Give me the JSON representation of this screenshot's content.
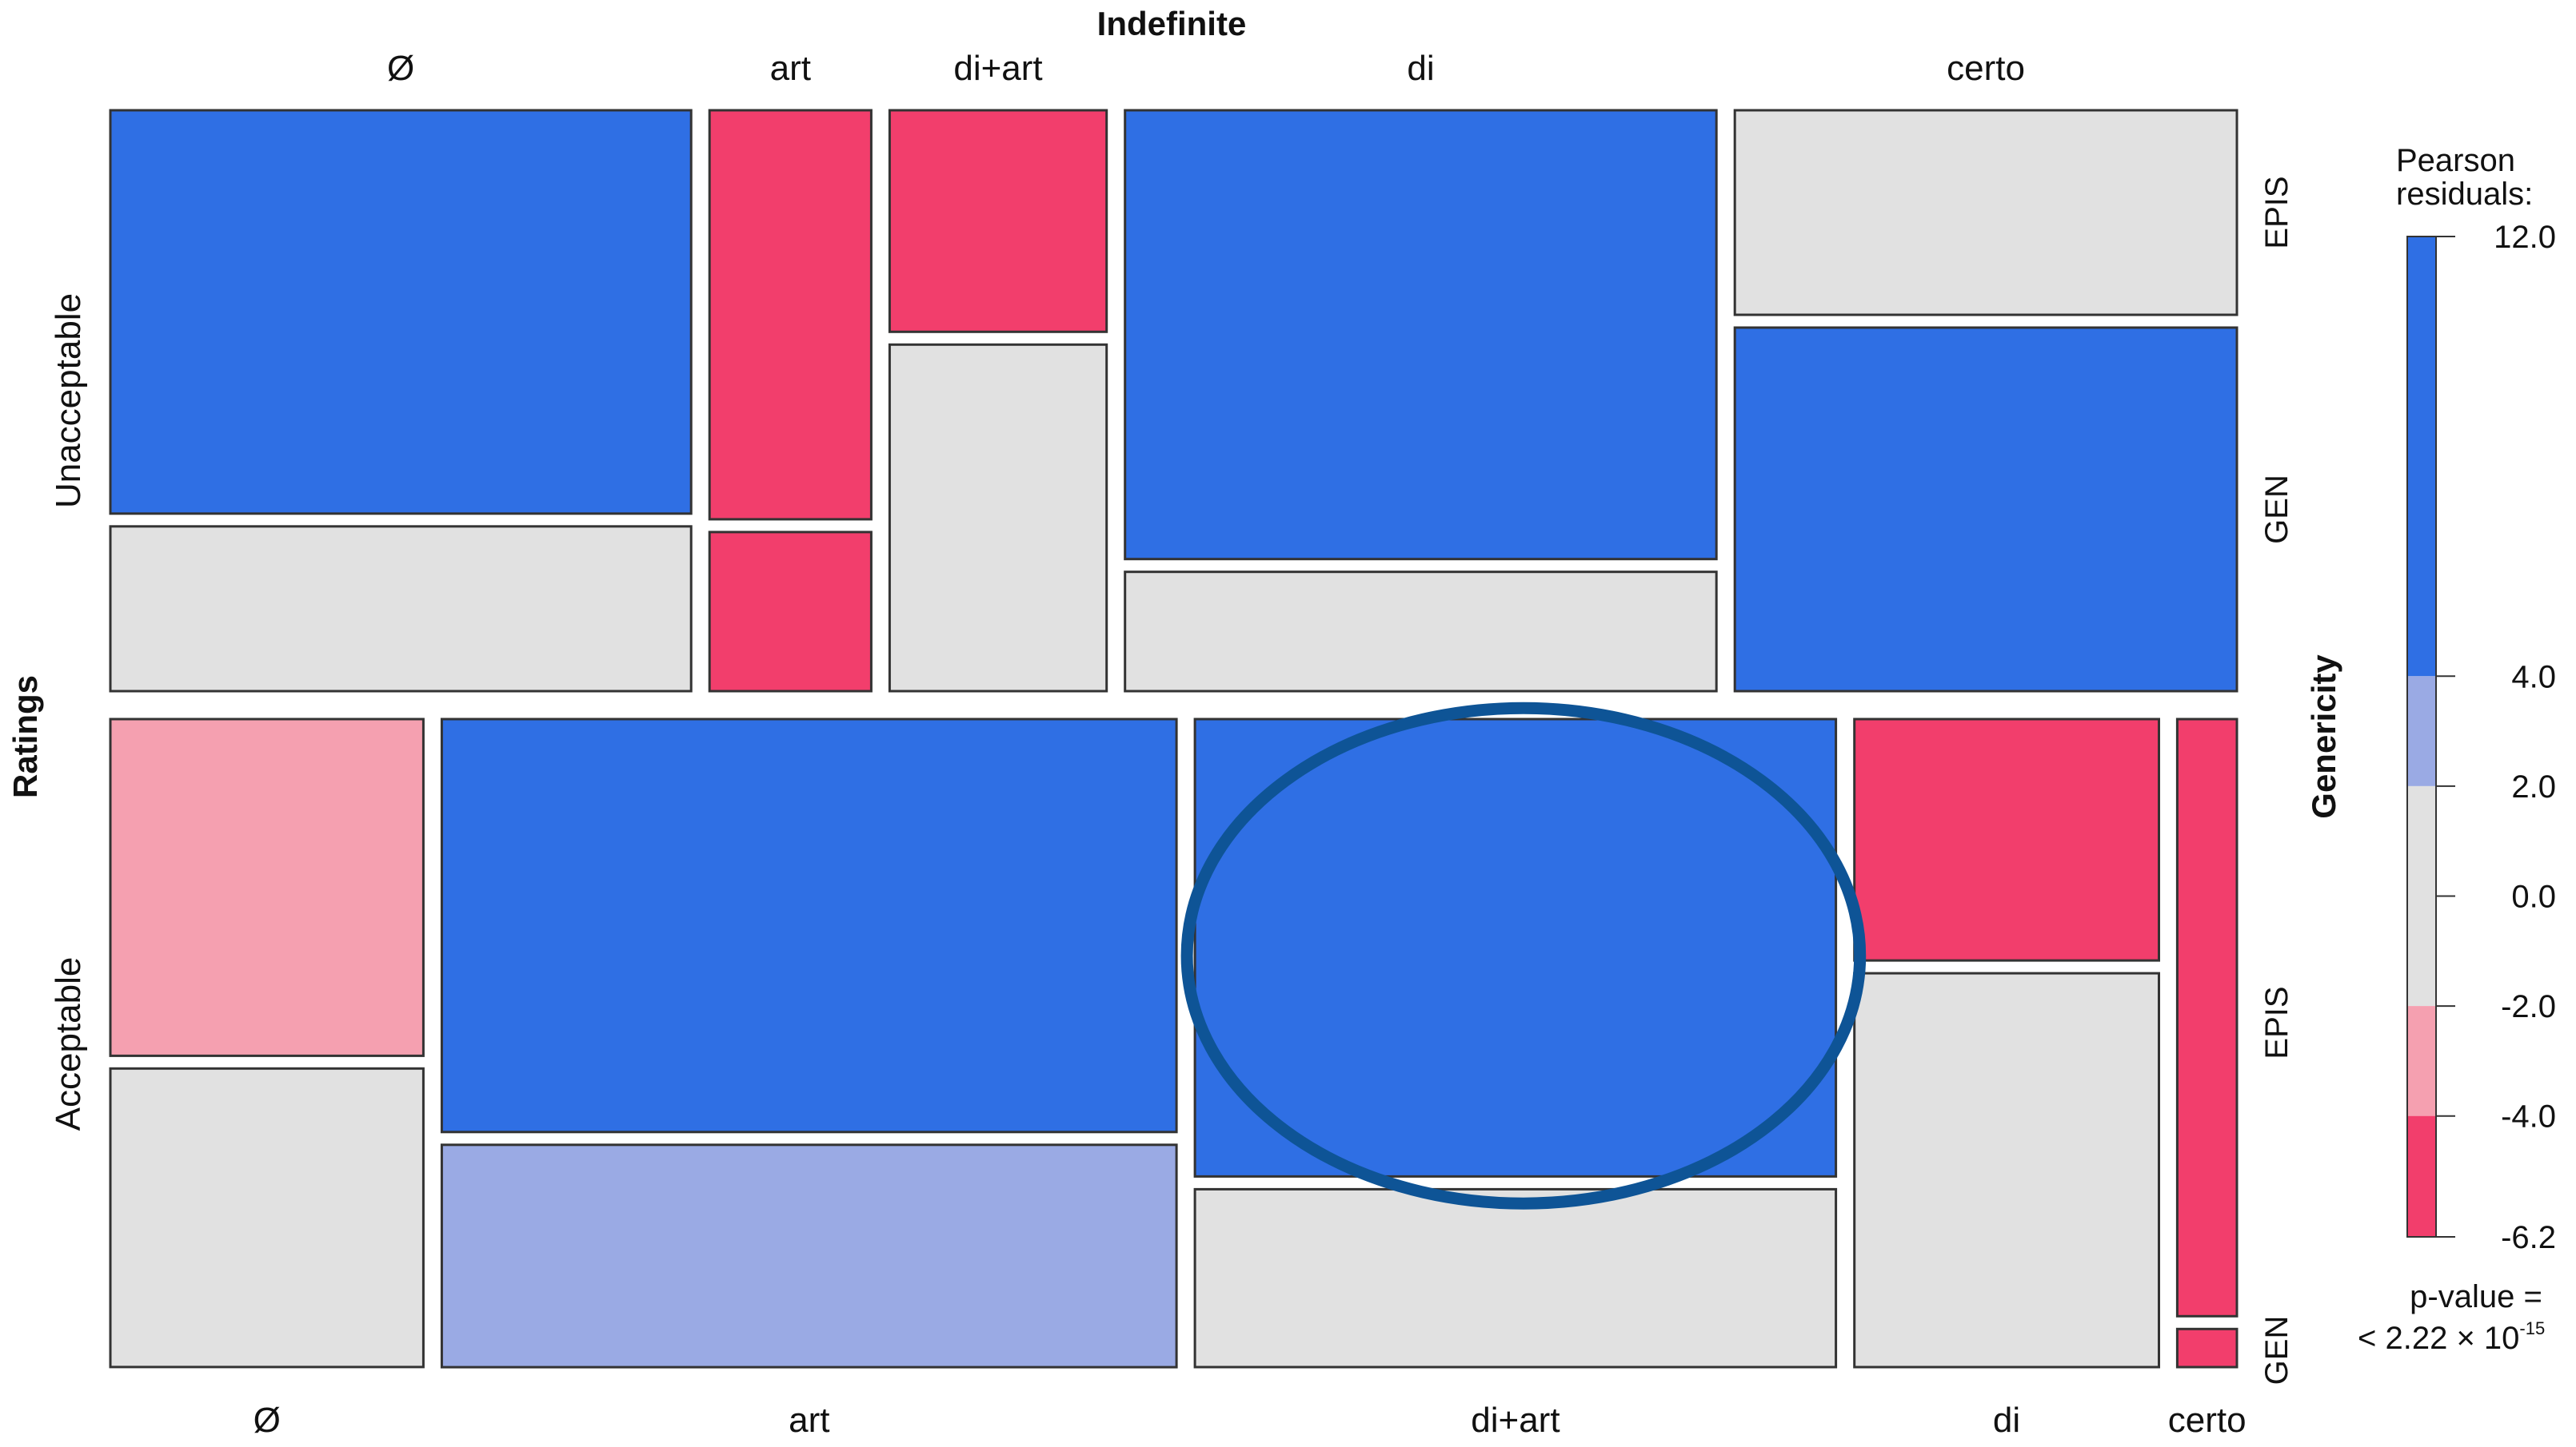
{
  "chart_data": {
    "type": "mosaic",
    "title": "",
    "top_variable_label": "Indefinite",
    "left_variable_label": "Ratings",
    "right_variable_label": "Genericity",
    "ratings": [
      "Unacceptable",
      "Acceptable"
    ],
    "genericity_levels": [
      "EPIS",
      "GEN"
    ],
    "indefinite_categories": [
      "Ø",
      "art",
      "di+art",
      "di",
      "certo"
    ],
    "colors": {
      "blue_strong": "#2f6fe4",
      "blue_light": "#9aaae4",
      "gray": "#e1e1e1",
      "red_light": "#f5a0b0",
      "red_strong": "#f23e6c",
      "highlight_ellipse": "#0e5496"
    },
    "panels": [
      {
        "rating": "Unacceptable",
        "columns": [
          {
            "category": "Ø",
            "width_share": 0.273,
            "EPIS": {
              "share": 0.71,
              "residual_class": "blue_strong"
            },
            "GEN": {
              "share": 0.29,
              "residual_class": "gray"
            }
          },
          {
            "category": "art",
            "width_share": 0.076,
            "EPIS": {
              "share": 0.72,
              "residual_class": "red_strong"
            },
            "GEN": {
              "share": 0.28,
              "residual_class": "red_strong"
            }
          },
          {
            "category": "di+art",
            "width_share": 0.102,
            "EPIS": {
              "share": 0.39,
              "residual_class": "red_strong"
            },
            "GEN": {
              "share": 0.61,
              "residual_class": "gray"
            }
          },
          {
            "category": "di",
            "width_share": 0.278,
            "EPIS": {
              "share": 0.79,
              "residual_class": "blue_strong"
            },
            "GEN": {
              "share": 0.21,
              "residual_class": "gray"
            }
          },
          {
            "category": "certo",
            "width_share": 0.236,
            "EPIS": {
              "share": 0.36,
              "residual_class": "gray"
            },
            "GEN": {
              "share": 0.64,
              "residual_class": "blue_strong"
            }
          }
        ]
      },
      {
        "rating": "Acceptable",
        "columns": [
          {
            "category": "Ø",
            "width_share": 0.147,
            "EPIS": {
              "share": 0.53,
              "residual_class": "red_light"
            },
            "GEN": {
              "share": 0.47,
              "residual_class": "gray"
            }
          },
          {
            "category": "art",
            "width_share": 0.345,
            "EPIS": {
              "share": 0.65,
              "residual_class": "blue_strong"
            },
            "GEN": {
              "share": 0.35,
              "residual_class": "blue_light"
            }
          },
          {
            "category": "di+art",
            "width_share": 0.301,
            "EPIS": {
              "share": 0.72,
              "residual_class": "blue_strong"
            },
            "GEN": {
              "share": 0.28,
              "residual_class": "gray"
            }
          },
          {
            "category": "di",
            "width_share": 0.143,
            "EPIS": {
              "share": 0.38,
              "residual_class": "red_strong"
            },
            "GEN": {
              "share": 0.62,
              "residual_class": "gray"
            }
          },
          {
            "category": "certo",
            "width_share": 0.028,
            "EPIS": {
              "share": 0.94,
              "residual_class": "red_strong"
            },
            "GEN": {
              "share": 0.06,
              "residual_class": "red_strong"
            }
          }
        ]
      }
    ],
    "highlight": {
      "rating": "Acceptable",
      "category": "di+art",
      "genericity": "EPIS",
      "shape": "ellipse"
    },
    "legend": {
      "title_line1": "Pearson",
      "title_line2": "residuals:",
      "ticks": [
        "12.0",
        "4.0",
        "2.0",
        "0.0",
        "-2.0",
        "-4.0",
        "-6.2"
      ],
      "tick_values": [
        12.0,
        4.0,
        2.0,
        0.0,
        -2.0,
        -4.0,
        -6.2
      ],
      "bands": [
        {
          "from": 4.0,
          "to": 12.0,
          "color": "#2f6fe4"
        },
        {
          "from": 2.0,
          "to": 4.0,
          "color": "#9aaae4"
        },
        {
          "from": -2.0,
          "to": 2.0,
          "color": "#e1e1e1"
        },
        {
          "from": -4.0,
          "to": -2.0,
          "color": "#f5a0b0"
        },
        {
          "from": -6.2,
          "to": -4.0,
          "color": "#f23e6c"
        }
      ],
      "placement": "right"
    },
    "pvalue": {
      "line1": "p-value =",
      "line2": "< 2.22 × 10",
      "exponent": "-15"
    }
  }
}
